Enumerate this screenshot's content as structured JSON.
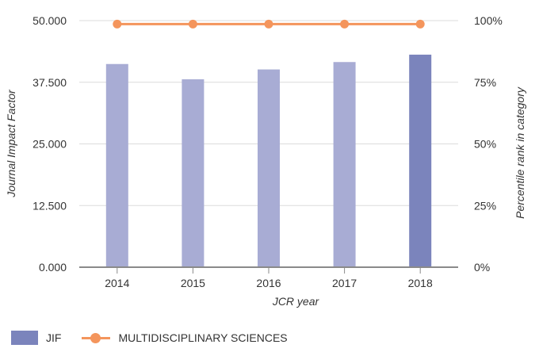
{
  "chart_data": {
    "type": "bar",
    "categories": [
      "2014",
      "2015",
      "2016",
      "2017",
      "2018"
    ],
    "series": [
      {
        "name": "JIF",
        "type": "bar",
        "axis": "left",
        "values": [
          41.2,
          38.1,
          40.1,
          41.6,
          43.1
        ],
        "colors": [
          "#a8acd4",
          "#a8acd4",
          "#a8acd4",
          "#a8acd4",
          "#7b84bc"
        ]
      },
      {
        "name": "MULTIDISCIPLINARY SCIENCES",
        "type": "line",
        "axis": "right",
        "values": [
          98.6,
          98.6,
          98.6,
          98.6,
          98.6
        ],
        "color": "#f4955c"
      }
    ],
    "xlabel": "JCR year",
    "ylabel": "Journal Impact Factor",
    "y2label": "Percentile rank in category",
    "ylim": [
      0,
      50
    ],
    "y2lim": [
      0,
      100
    ],
    "yticks": [
      0,
      12.5,
      25,
      37.5,
      50
    ],
    "ytick_labels": [
      "0.000",
      "12.500",
      "25.000",
      "37.500",
      "50.000"
    ],
    "y2ticks": [
      0,
      25,
      50,
      75,
      100
    ],
    "y2tick_labels": [
      "0%",
      "25%",
      "50%",
      "75%",
      "100%"
    ],
    "grid": true,
    "legend_position": "bottom-left"
  },
  "legend": {
    "items": [
      {
        "label": "JIF",
        "kind": "bar",
        "color": "#7b84bc"
      },
      {
        "label": "MULTIDISCIPLINARY SCIENCES",
        "kind": "line",
        "color": "#f4955c"
      }
    ]
  }
}
